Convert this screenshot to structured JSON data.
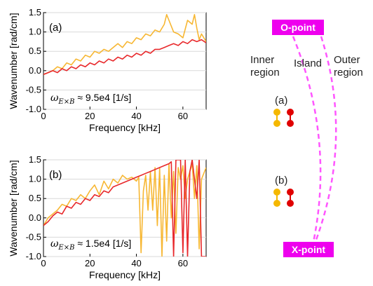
{
  "colors": {
    "series_a_light": "#f7b733",
    "series_b_red": "#e8282b",
    "dashed": "#ff55ff",
    "label_box": "#ee00ee",
    "dot_light": "#f5b800",
    "dot_dark": "#e00000"
  },
  "chart_data": [
    {
      "type": "line",
      "panel_label": "(a)",
      "xlabel": "Frequency [kHz]",
      "ylabel": "Wavenumber [rad/cm]",
      "xlim": [
        0,
        70
      ],
      "ylim": [
        -1.0,
        1.5
      ],
      "xticks": [
        "0",
        "20",
        "40",
        "60"
      ],
      "yticks": [
        "-1.0",
        "-0.5",
        "0.0",
        "0.5",
        "1.0",
        "1.5"
      ],
      "annotation": {
        "symbol": "ω",
        "subscript": "E×B",
        "text": " ≈ 9.5e4 [1/s]"
      },
      "series": [
        {
          "color": "#f7b733",
          "x": [
            0,
            2,
            4,
            6,
            8,
            10,
            12,
            14,
            16,
            18,
            20,
            22,
            24,
            26,
            28,
            30,
            32,
            34,
            36,
            38,
            40,
            42,
            44,
            46,
            48,
            50,
            52,
            53,
            54,
            56,
            58,
            60,
            62,
            64,
            65,
            66,
            67,
            68,
            70
          ],
          "y": [
            -0.1,
            -0.05,
            0.0,
            0.1,
            0.05,
            0.2,
            0.15,
            0.3,
            0.25,
            0.4,
            0.35,
            0.5,
            0.45,
            0.55,
            0.5,
            0.6,
            0.7,
            0.6,
            0.75,
            0.7,
            0.85,
            0.8,
            0.95,
            0.9,
            1.05,
            1.0,
            1.2,
            1.45,
            1.3,
            1.0,
            0.95,
            0.85,
            1.3,
            1.2,
            1.45,
            1.1,
            0.8,
            0.95,
            0.75
          ]
        },
        {
          "color": "#e8282b",
          "x": [
            0,
            2,
            4,
            6,
            8,
            10,
            12,
            14,
            16,
            18,
            20,
            22,
            24,
            26,
            28,
            30,
            32,
            34,
            36,
            38,
            40,
            42,
            44,
            46,
            48,
            50,
            52,
            54,
            56,
            58,
            60,
            62,
            64,
            66,
            68,
            70
          ],
          "y": [
            -0.1,
            -0.05,
            0.0,
            -0.05,
            0.05,
            0.0,
            0.1,
            0.05,
            0.15,
            0.1,
            0.2,
            0.15,
            0.25,
            0.2,
            0.3,
            0.25,
            0.35,
            0.3,
            0.4,
            0.35,
            0.45,
            0.4,
            0.5,
            0.45,
            0.55,
            0.55,
            0.6,
            0.65,
            0.7,
            0.65,
            0.75,
            0.7,
            0.8,
            0.75,
            0.8,
            0.72
          ]
        }
      ]
    },
    {
      "type": "line",
      "panel_label": "(b)",
      "xlabel": "Frequency [kHz]",
      "ylabel": "Wavenumber [rad/cm]",
      "xlim": [
        0,
        70
      ],
      "ylim": [
        -1.0,
        1.5
      ],
      "xticks": [
        "0",
        "20",
        "40",
        "60"
      ],
      "yticks": [
        "-1.0",
        "-0.5",
        "0.0",
        "0.5",
        "1.0",
        "1.5"
      ],
      "annotation": {
        "symbol": "ω",
        "subscript": "E×B",
        "text": " ≈ 1.5e4 [1/s]"
      },
      "series": [
        {
          "color": "#f7b733",
          "x": [
            0,
            2,
            4,
            6,
            8,
            10,
            12,
            14,
            16,
            18,
            20,
            22,
            24,
            26,
            28,
            30,
            32,
            34,
            36,
            38,
            40,
            41,
            42,
            43,
            44,
            45,
            46,
            47,
            48,
            49,
            50,
            51,
            52,
            53,
            54,
            55,
            56,
            57,
            58,
            59,
            60,
            61,
            62,
            63,
            64,
            65,
            66,
            67,
            68,
            70
          ],
          "y": [
            -0.2,
            0.0,
            0.1,
            0.2,
            0.35,
            0.3,
            0.5,
            0.45,
            0.6,
            0.5,
            0.7,
            0.85,
            0.6,
            0.95,
            0.75,
            1.0,
            0.9,
            1.1,
            1.0,
            1.05,
            0.95,
            1.05,
            -0.9,
            0.7,
            1.1,
            0.2,
            1.2,
            0.2,
            1.3,
            -0.2,
            1.3,
            -1.0,
            1.1,
            -0.6,
            1.4,
            0.0,
            1.2,
            -0.4,
            1.3,
            1.0,
            1.35,
            0.5,
            1.0,
            1.2,
            1.4,
            0.5,
            1.35,
            -0.8,
            1.0,
            1.3
          ]
        },
        {
          "color": "#e8282b",
          "x": [
            0,
            2,
            4,
            6,
            8,
            10,
            12,
            14,
            16,
            18,
            20,
            22,
            24,
            26,
            28,
            30,
            32,
            34,
            36,
            38,
            40,
            42,
            44,
            46,
            48,
            50,
            52,
            54,
            55,
            56,
            57,
            58,
            59,
            60,
            61,
            62,
            63,
            64,
            65,
            66,
            67,
            68,
            70
          ],
          "y": [
            -0.2,
            -0.1,
            0.05,
            0.15,
            0.1,
            0.3,
            0.25,
            0.4,
            0.35,
            0.5,
            0.45,
            0.6,
            0.55,
            0.7,
            0.65,
            0.8,
            0.85,
            0.9,
            0.95,
            1.0,
            1.05,
            1.1,
            1.15,
            1.2,
            1.25,
            1.3,
            1.35,
            1.4,
            1.45,
            -1.0,
            1.5,
            1.5,
            1.5,
            -0.9,
            1.5,
            -1.0,
            1.2,
            1.5,
            1.0,
            0.5,
            1.5,
            -1.0,
            -1.0
          ]
        }
      ]
    }
  ],
  "diagram": {
    "o_point_label": "O-point",
    "x_point_label": "X-point",
    "inner_region_label": [
      "Inner",
      "region"
    ],
    "island_label": "Island",
    "outer_region_label": [
      "Outer",
      "region"
    ],
    "marker_a_label": "(a)",
    "marker_b_label": "(b)"
  }
}
